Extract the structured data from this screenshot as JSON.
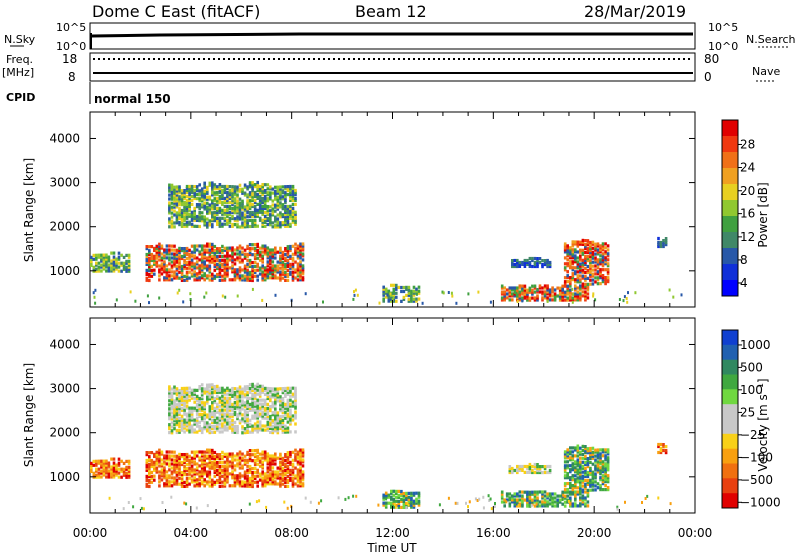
{
  "header": {
    "station": "Dome C East (fitACF)",
    "beam": "Beam 12",
    "date": "28/Mar/2019"
  },
  "top_panels": {
    "nsky_label": "N.Sky",
    "nsky_ticks_left": [
      "10^5",
      "10^0"
    ],
    "nsky_ticks_right": [
      "10^5",
      "10^0"
    ],
    "nsearch_label": "N.Search",
    "freq_label": "Freq.",
    "freq_unit": "[MHz]",
    "freq_ticks": [
      "18",
      "8"
    ],
    "nave_label": "Nave",
    "nave_ticks": [
      "80",
      "0"
    ],
    "cpid_label": "CPID",
    "cpid_value": "normal 150"
  },
  "axes": {
    "ylabel": "Slant Range [km]",
    "y_ticks": [
      "4000",
      "3000",
      "2000",
      "1000"
    ],
    "x_ticks": [
      "00:00",
      "04:00",
      "08:00",
      "12:00",
      "16:00",
      "20:00",
      "00:00"
    ],
    "xlabel": "Time UT"
  },
  "colorbars": {
    "power": {
      "label": "Power [dB]",
      "ticks": [
        "28",
        "24",
        "20",
        "16",
        "12",
        "8",
        "4"
      ],
      "colors": [
        "#e00000",
        "#f03810",
        "#f07018",
        "#f0a020",
        "#e8d020",
        "#90c830",
        "#40a040",
        "#408868",
        "#2858a8",
        "#1030d8",
        "#0000ff"
      ]
    },
    "velocity": {
      "label": "Velocity [m s⁻¹]",
      "ticks": [
        "1000",
        "500",
        "100",
        "25",
        "−25",
        "−100",
        "−500",
        "−1000"
      ],
      "colors": [
        "#1040d0",
        "#2060b0",
        "#308860",
        "#40a840",
        "#70d840",
        "#c8c8c8",
        "#c8c8c8",
        "#f8d018",
        "#f8a010",
        "#f07010",
        "#e84010",
        "#e00000"
      ]
    }
  },
  "chart_data": [
    {
      "type": "heatmap",
      "title": "Power",
      "xlabel": "Time UT",
      "ylabel": "Slant Range [km]",
      "xlim": [
        0,
        24
      ],
      "ylim": [
        180,
        4600
      ],
      "regions": [
        {
          "t0": 0.0,
          "t1": 1.6,
          "r0": 930,
          "r1": 1380,
          "level": "mid"
        },
        {
          "t0": 2.2,
          "t1": 8.4,
          "r0": 700,
          "r1": 1600,
          "level": "high"
        },
        {
          "t0": 3.1,
          "t1": 8.1,
          "r0": 1900,
          "r1": 3000,
          "level": "mid"
        },
        {
          "t0": 11.6,
          "t1": 13.0,
          "r0": 250,
          "r1": 650,
          "level": "mid"
        },
        {
          "t0": 16.3,
          "t1": 19.8,
          "r0": 280,
          "r1": 650,
          "level": "high"
        },
        {
          "t0": 18.8,
          "t1": 20.6,
          "r0": 600,
          "r1": 1700,
          "level": "high"
        },
        {
          "t0": 16.6,
          "t1": 18.3,
          "r0": 1050,
          "r1": 1250,
          "level": "low"
        },
        {
          "t0": 22.5,
          "t1": 22.9,
          "r0": 1500,
          "r1": 1750,
          "level": "low"
        }
      ]
    },
    {
      "type": "heatmap",
      "title": "Velocity",
      "xlabel": "Time UT",
      "ylabel": "Slant Range [km]",
      "xlim": [
        0,
        24
      ],
      "ylim": [
        180,
        4600
      ],
      "regions": [
        {
          "t0": 0.0,
          "t1": 1.6,
          "r0": 930,
          "r1": 1380,
          "level": "neg"
        },
        {
          "t0": 2.2,
          "t1": 8.4,
          "r0": 700,
          "r1": 1600,
          "level": "neg"
        },
        {
          "t0": 3.1,
          "t1": 8.1,
          "r0": 1900,
          "r1": 3100,
          "level": "zero"
        },
        {
          "t0": 11.6,
          "t1": 13.0,
          "r0": 250,
          "r1": 650,
          "level": "pos"
        },
        {
          "t0": 16.3,
          "t1": 19.8,
          "r0": 280,
          "r1": 650,
          "level": "pos"
        },
        {
          "t0": 18.8,
          "t1": 20.6,
          "r0": 600,
          "r1": 1700,
          "level": "pos"
        },
        {
          "t0": 16.6,
          "t1": 18.3,
          "r0": 1050,
          "r1": 1250,
          "level": "zero"
        },
        {
          "t0": 22.5,
          "t1": 22.9,
          "r0": 1500,
          "r1": 1750,
          "level": "neg"
        }
      ]
    }
  ]
}
